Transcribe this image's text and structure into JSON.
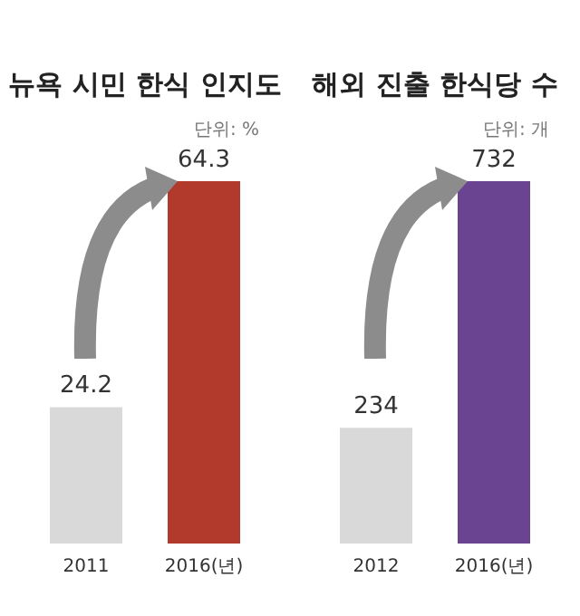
{
  "chart_data": [
    {
      "type": "bar",
      "title": "뉴욕 시민 한식 인지도",
      "subtitle": "단위: %",
      "categories": [
        "2011",
        "2016(년)"
      ],
      "values": [
        24.2,
        64.3
      ],
      "colors": [
        "#d9d9d9",
        "#b23a2c"
      ],
      "data_labels": true
    },
    {
      "type": "bar",
      "title": "해외 진출 한식당 수",
      "subtitle": "단위: 개",
      "categories": [
        "2012",
        "2016(년)"
      ],
      "values": [
        234,
        732
      ],
      "colors": [
        "#d9d9d9",
        "#6a4391"
      ],
      "data_labels": true
    }
  ]
}
